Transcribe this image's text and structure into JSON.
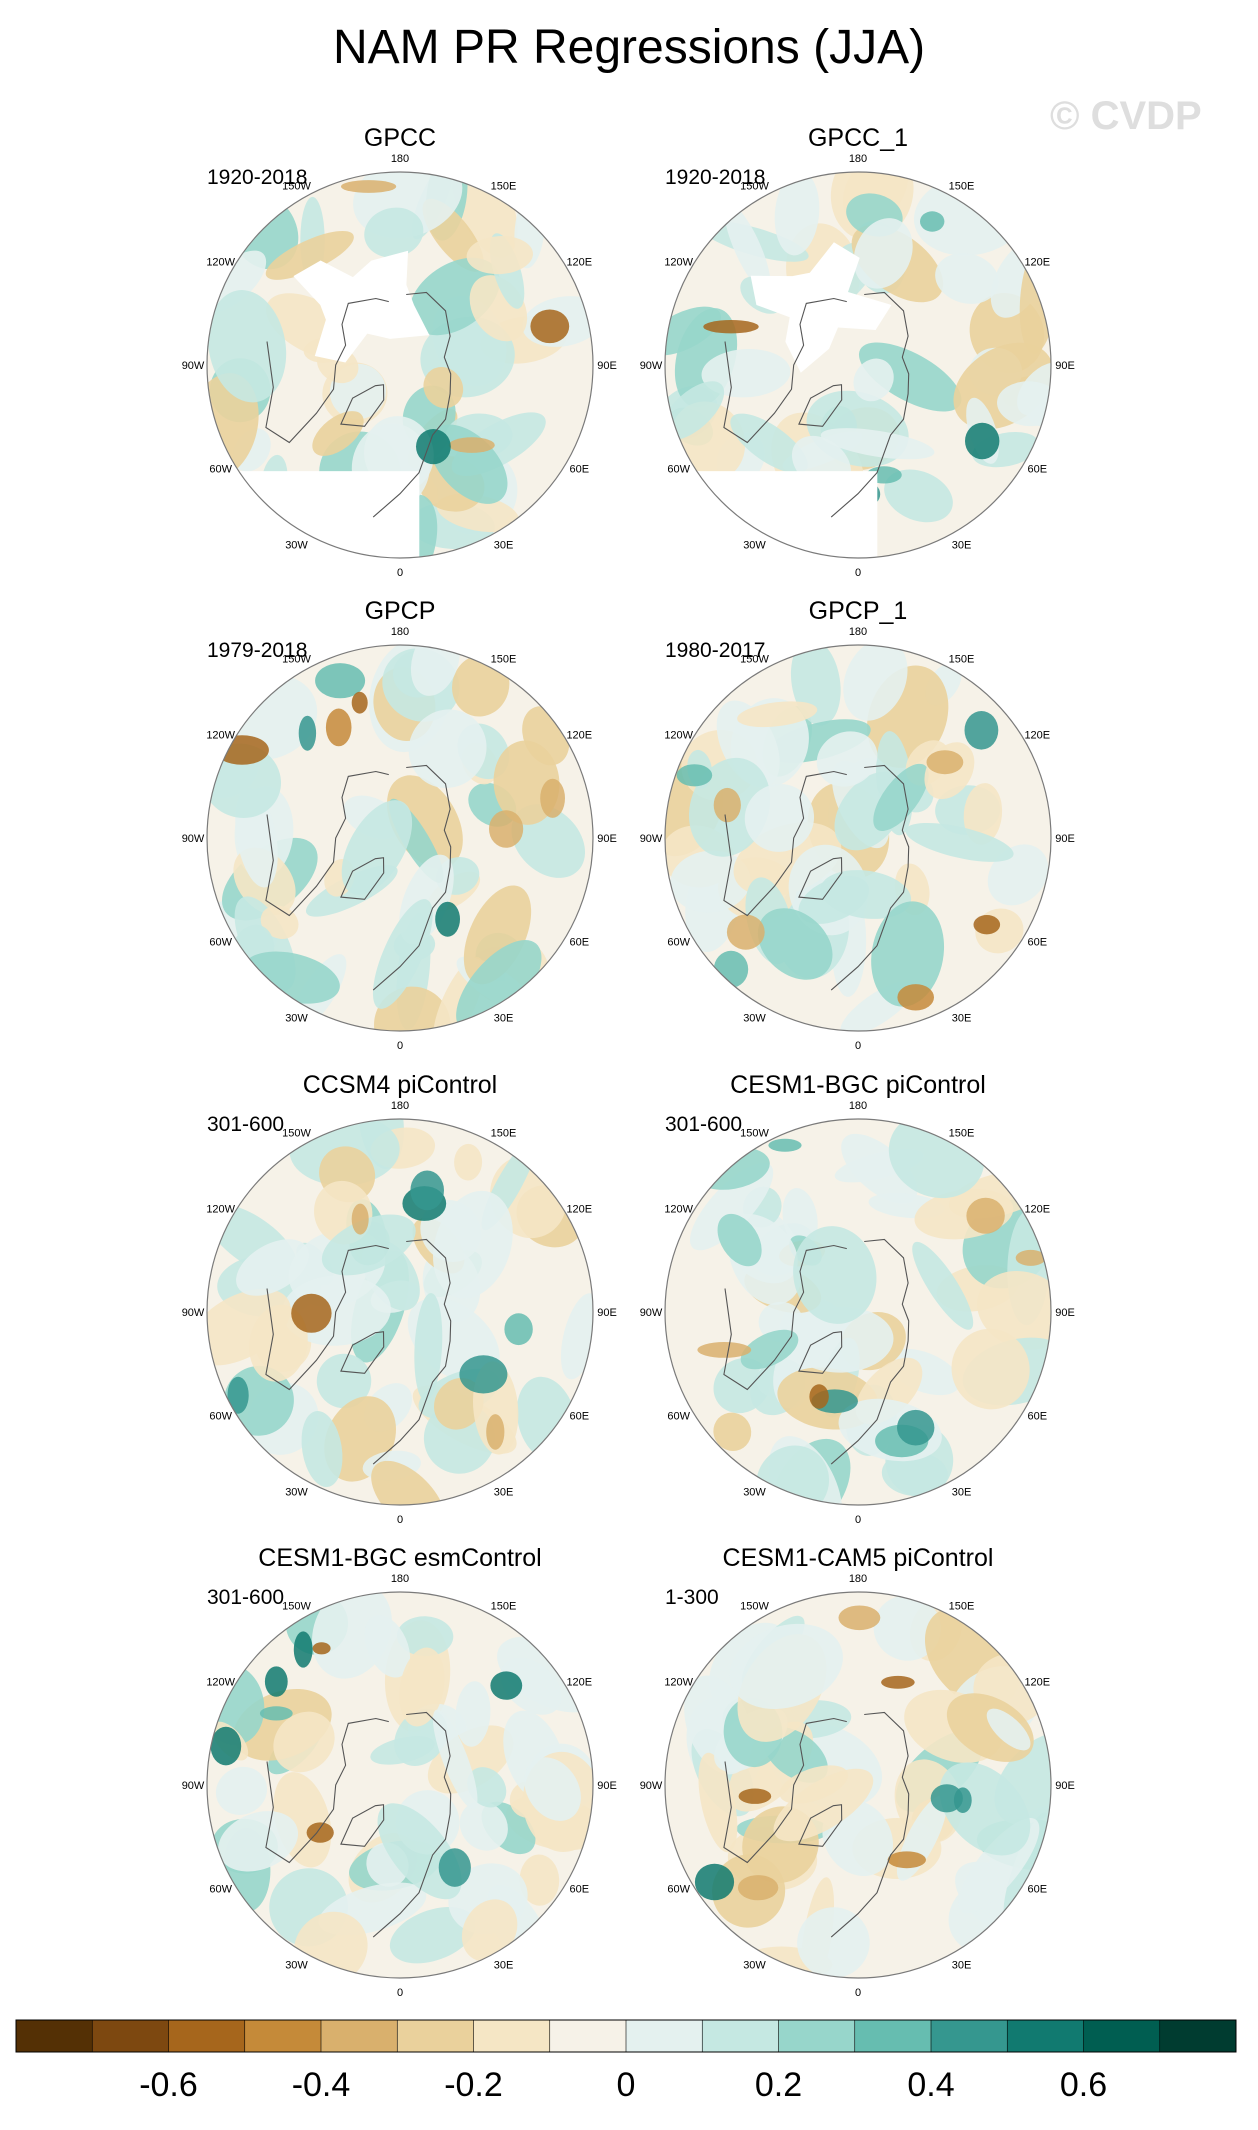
{
  "title": "NAM PR Regressions (JJA)",
  "watermark": "© CVDP",
  "panels": [
    {
      "name": "GPCC",
      "period": "1920-2018",
      "missing_arctic": true
    },
    {
      "name": "GPCC_1",
      "period": "1920-2018",
      "missing_arctic": true
    },
    {
      "name": "GPCP",
      "period": "1979-2018",
      "missing_arctic": false
    },
    {
      "name": "GPCP_1",
      "period": "1980-2017",
      "missing_arctic": false
    },
    {
      "name": "CCSM4 piControl",
      "period": "301-600",
      "missing_arctic": false
    },
    {
      "name": "CESM1-BGC piControl",
      "period": "301-600",
      "missing_arctic": false
    },
    {
      "name": "CESM1-BGC esmControl",
      "period": "301-600",
      "missing_arctic": false
    },
    {
      "name": "CESM1-CAM5 piControl",
      "period": "1-300",
      "missing_arctic": false
    }
  ],
  "lon_labels": [
    "180",
    "150E",
    "120E",
    "90E",
    "60E",
    "30E",
    "0",
    "30W",
    "60W",
    "90W",
    "120W",
    "150W"
  ],
  "colorbar": {
    "colors": [
      "#543005",
      "#7d4810",
      "#a6661c",
      "#c58a39",
      "#d9b06d",
      "#ead19c",
      "#f5e6c5",
      "#f6f2e8",
      "#e4f1ef",
      "#c5e8e2",
      "#97d6cb",
      "#66bdb0",
      "#35978f",
      "#117a70",
      "#005e51",
      "#003c30"
    ],
    "tick_labels": [
      "-0.6",
      "-0.4",
      "-0.2",
      "0",
      "0.2",
      "0.4",
      "0.6"
    ],
    "tick_values": [
      -0.6,
      -0.4,
      -0.2,
      0,
      0.2,
      0.4,
      0.6
    ],
    "min": -0.8,
    "max": 0.8
  }
}
